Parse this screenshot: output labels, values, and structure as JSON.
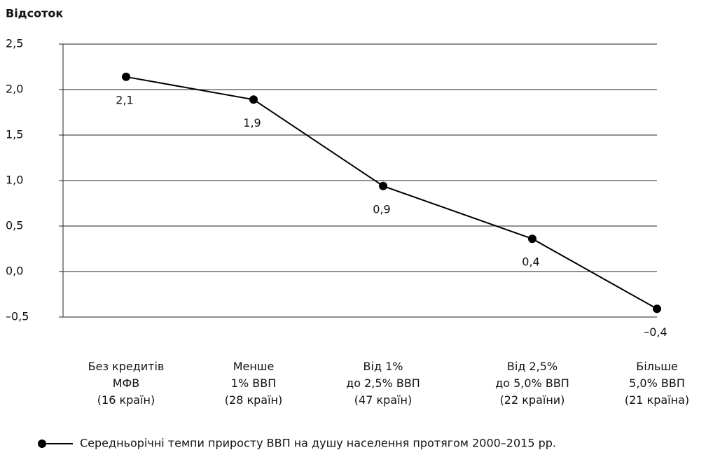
{
  "chart_data": {
    "type": "line",
    "y_label": "Відсоток",
    "categories": [
      [
        "Без кредитів",
        "МФВ",
        "(16 країн)"
      ],
      [
        "Менше",
        "1% ВВП",
        "(28 країн)"
      ],
      [
        "Від 1%",
        "до 2,5% ВВП",
        "(47 країн)"
      ],
      [
        "Від 2,5%",
        "до 5,0% ВВП",
        "(22 країни)"
      ],
      [
        "Більше",
        "5,0% ВВП",
        "(21 країна)"
      ]
    ],
    "series": [
      {
        "name": "Середньорічні темпи приросту ВВП на душу населення протягом 2000–2015 рр.",
        "color": "#000000",
        "values": [
          2.14,
          1.89,
          0.94,
          0.36,
          -0.41
        ],
        "value_labels": [
          "2,1",
          "1,9",
          "0,9",
          "0,4",
          "–0,4"
        ]
      }
    ],
    "ylim": [
      -0.5,
      2.5
    ],
    "yticks": [
      {
        "value": -0.5,
        "label": "–0,5"
      },
      {
        "value": 0,
        "label": "0,0"
      },
      {
        "value": 0.5,
        "label": "0,5"
      },
      {
        "value": 1,
        "label": "1,0"
      },
      {
        "value": 1.5,
        "label": "1,5"
      },
      {
        "value": 2,
        "label": "2,0"
      },
      {
        "value": 2.5,
        "label": "2,5"
      }
    ],
    "grid": true
  }
}
